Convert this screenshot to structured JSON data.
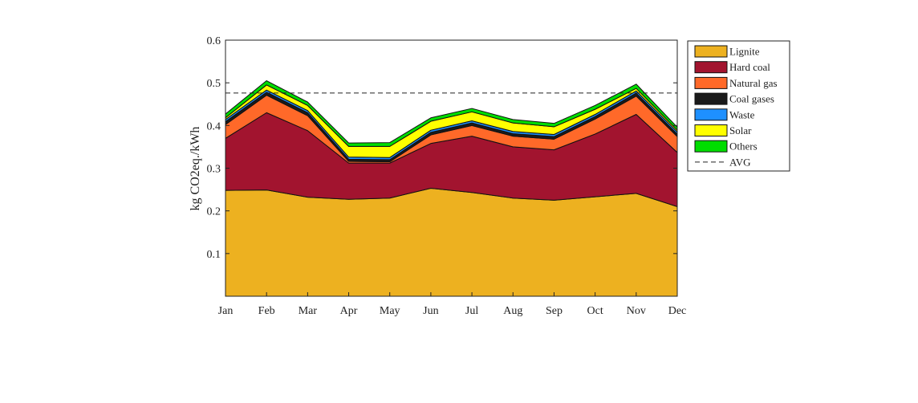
{
  "chart_data": {
    "type": "area",
    "stacked": true,
    "title": "",
    "xlabel": "",
    "ylabel": "kg CO2eq./kWh",
    "ylim": [
      0,
      0.6
    ],
    "yticks": [
      "0.1",
      "0.2",
      "0.3",
      "0.4",
      "0.5",
      "0.6"
    ],
    "grid": false,
    "legend_position": "outside-top-right",
    "categories": [
      "Jan",
      "Feb",
      "Mar",
      "Apr",
      "May",
      "Jun",
      "Jul",
      "Aug",
      "Sep",
      "Oct",
      "Nov",
      "Dec"
    ],
    "series": [
      {
        "name": "Lignite",
        "color": "#EDB120",
        "values": [
          0.248,
          0.249,
          0.232,
          0.227,
          0.23,
          0.253,
          0.243,
          0.23,
          0.225,
          0.233,
          0.241,
          0.21
        ]
      },
      {
        "name": "Hard coal",
        "color": "#A2142F",
        "values": [
          0.122,
          0.181,
          0.156,
          0.085,
          0.082,
          0.105,
          0.132,
          0.12,
          0.118,
          0.147,
          0.185,
          0.127
        ]
      },
      {
        "name": "Natural gas",
        "color": "#FF6929",
        "values": [
          0.032,
          0.041,
          0.035,
          0.004,
          0.003,
          0.02,
          0.025,
          0.025,
          0.025,
          0.035,
          0.043,
          0.037
        ]
      },
      {
        "name": "Coal gases",
        "color": "#1A1A1A",
        "values": [
          0.007,
          0.007,
          0.007,
          0.005,
          0.005,
          0.006,
          0.006,
          0.006,
          0.006,
          0.006,
          0.007,
          0.006
        ]
      },
      {
        "name": "Waste",
        "color": "#1E90FF",
        "values": [
          0.005,
          0.005,
          0.005,
          0.005,
          0.005,
          0.005,
          0.005,
          0.005,
          0.005,
          0.005,
          0.005,
          0.005
        ]
      },
      {
        "name": "Solar",
        "color": "#FFFF00",
        "values": [
          0.004,
          0.012,
          0.012,
          0.025,
          0.026,
          0.021,
          0.021,
          0.02,
          0.018,
          0.012,
          0.006,
          0.004
        ]
      },
      {
        "name": "Others",
        "color": "#00DD00",
        "values": [
          0.009,
          0.01,
          0.008,
          0.008,
          0.009,
          0.008,
          0.008,
          0.008,
          0.008,
          0.009,
          0.01,
          0.007
        ]
      }
    ],
    "avg": {
      "name": "AVG",
      "value": 0.476
    }
  }
}
